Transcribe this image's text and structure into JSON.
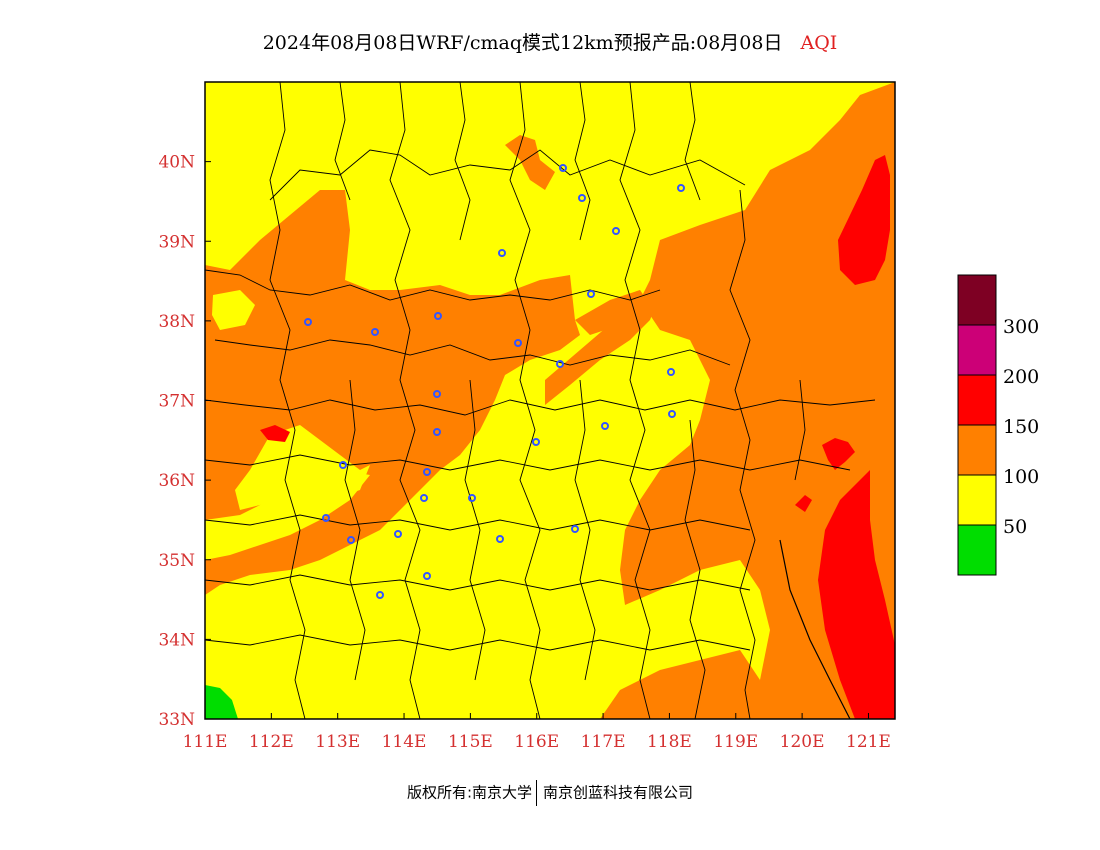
{
  "title": {
    "main": "2024年08月08日WRF/cmaq模式12km预报产品:08月08日",
    "tag": "AQI"
  },
  "axes": {
    "lon_ticks": [
      "111E",
      "112E",
      "113E",
      "114E",
      "115E",
      "116E",
      "117E",
      "118E",
      "119E",
      "120E",
      "121E"
    ],
    "lat_ticks": [
      "33N",
      "34N",
      "35N",
      "36N",
      "37N",
      "38N",
      "39N",
      "40N"
    ],
    "lon_range": [
      111,
      121.4
    ],
    "lat_range": [
      33,
      41
    ]
  },
  "legend": {
    "labels": [
      "50",
      "100",
      "150",
      "200",
      "300"
    ],
    "colors": {
      "good": "#00dd00",
      "moderate": "#ffff00",
      "usg": "#ff8000",
      "unhealthy": "#ff0000",
      "very_unhealthy": "#cc0077",
      "hazardous": "#7e0023"
    }
  },
  "footer": {
    "left": "版权所有:南京大学",
    "right": "南京创蓝科技有限公司"
  },
  "colors": {
    "axis_label": "#d43030",
    "aqi_tag": "#e02020",
    "station_marker": "#3355ff",
    "boundary": "#000000"
  }
}
